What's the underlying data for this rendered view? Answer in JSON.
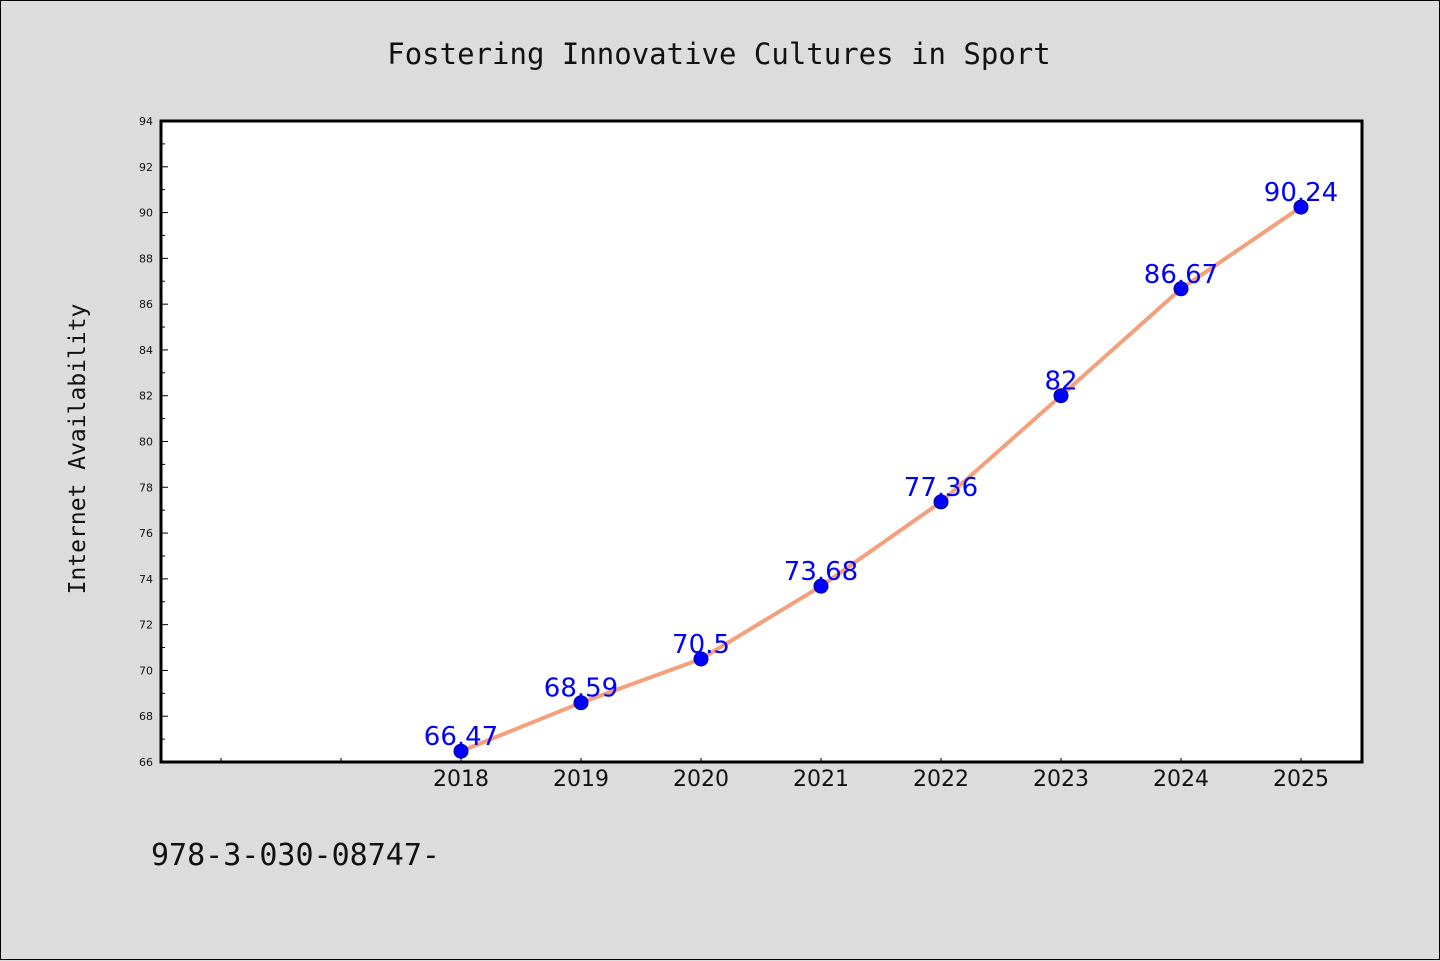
{
  "footer_text": "978-3-030-08747-",
  "chart_data": {
    "type": "line",
    "title": "Fostering Innovative Cultures in Sport",
    "xlabel": "",
    "ylabel": "Internet Availability",
    "categories": [
      "2018",
      "2019",
      "2020",
      "2021",
      "2022",
      "2023",
      "2024",
      "2025"
    ],
    "series": [
      {
        "values": [
          66.47,
          68.59,
          70.5,
          73.68,
          77.36,
          82,
          86.67,
          90.24
        ],
        "labels": [
          "66.47",
          "68.59",
          "70.5",
          "73.68",
          "77.36",
          "82",
          "86.67",
          "90.24"
        ]
      }
    ],
    "ylim": [
      66,
      94
    ],
    "y_ticks": [
      66,
      68,
      70,
      72,
      74,
      76,
      78,
      80,
      82,
      84,
      86,
      88,
      90,
      92,
      94
    ],
    "x_slots_before_first": 2,
    "grid": false,
    "colors": {
      "line": "#f4a07c",
      "marker": "#0000ff",
      "data_label": "#0000ff",
      "background": "#dcdcdc",
      "plot_area": "#ffffff"
    }
  }
}
